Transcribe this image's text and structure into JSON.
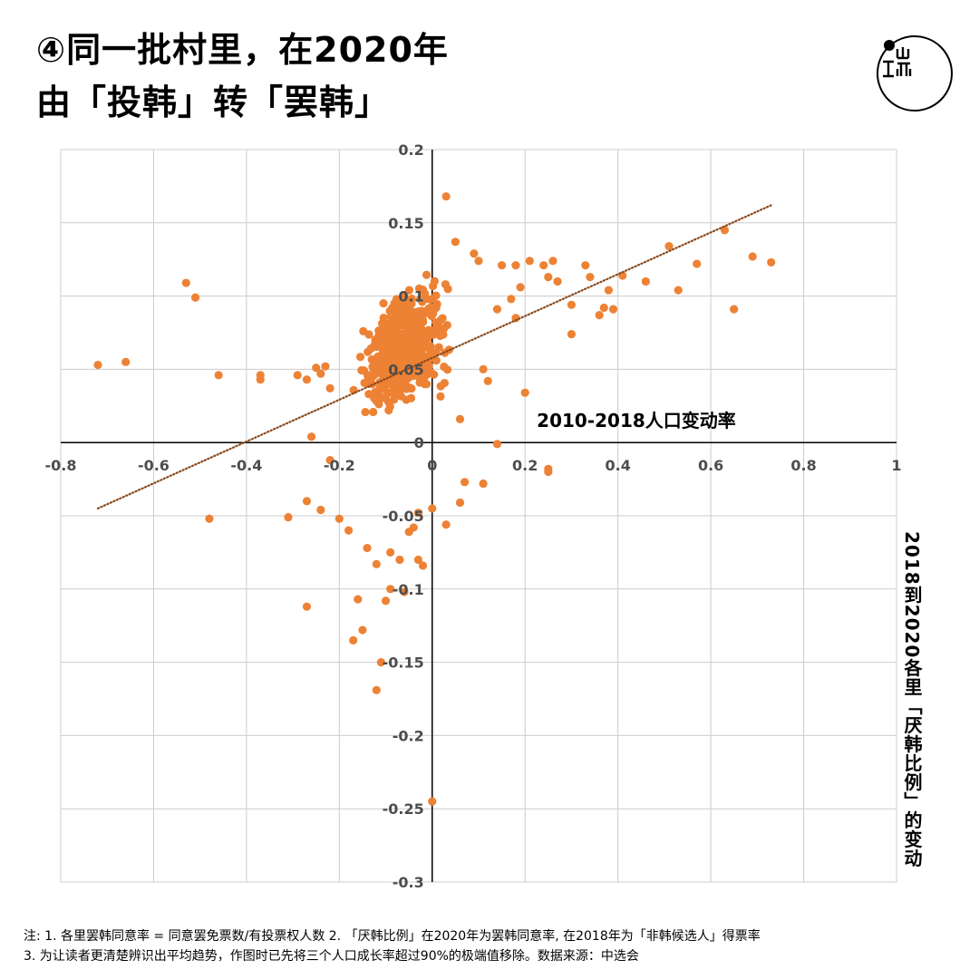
{
  "title": {
    "line1": "④同一批村里，在2020年",
    "line2": "由「投韩」转「罢韩」"
  },
  "logo": {
    "text": "端",
    "icon": "initium-logo-icon"
  },
  "notes": {
    "line1": "注: 1. 各里罢韩同意率 = 同意罢免票数/有投票权人数 2. 「厌韩比例」在2020年为罢韩同意率, 在2018年为「非韩候选人」得票率",
    "line2": "3. 为让读者更清楚辨识出平均趋势，作图时已先将三个人口成长率超过90%的极端值移除。数据来源：中选会"
  },
  "colors": {
    "point": "#ED8235",
    "trend": "#8B4A1E",
    "grid": "#cccccc",
    "axis": "#000000",
    "tick": "#4d4d4d"
  },
  "chart_data": {
    "type": "scatter",
    "title": "④同一批村里，在2020年由「投韩」转「罢韩」",
    "xlabel": "2010-2018人口变动率",
    "ylabel": "2018到2020各里「厌韩比例」的变动",
    "xlim": [
      -0.8,
      1
    ],
    "ylim": [
      -0.3,
      0.2
    ],
    "x_ticks": [
      "-0.8",
      "-0.6",
      "-0.4",
      "-0.2",
      "0",
      "0.2",
      "0.4",
      "0.6",
      "0.8",
      "1"
    ],
    "x_tick_values": [
      -0.8,
      -0.6,
      -0.4,
      -0.2,
      0,
      0.2,
      0.4,
      0.6,
      0.8,
      1
    ],
    "y_ticks": [
      "0.2",
      "0.15",
      "0.1",
      "0.05",
      "0",
      "-0.05",
      "-0.1",
      "-0.15",
      "-0.2",
      "-0.25",
      "-0.3"
    ],
    "y_tick_values": [
      0.2,
      0.15,
      0.1,
      0.05,
      0,
      -0.05,
      -0.1,
      -0.15,
      -0.2,
      -0.25,
      -0.3
    ],
    "grid": true,
    "trendline": {
      "x": [
        -0.72,
        0.73
      ],
      "y": [
        -0.045,
        0.162
      ],
      "style": "dotted"
    },
    "explicit_points": [
      [
        -0.72,
        0.053
      ],
      [
        -0.66,
        0.055
      ],
      [
        -0.53,
        0.109
      ],
      [
        -0.51,
        0.099
      ],
      [
        -0.46,
        0.046
      ],
      [
        -0.48,
        -0.052
      ],
      [
        -0.37,
        0.046
      ],
      [
        -0.37,
        0.043
      ],
      [
        -0.31,
        -0.051
      ],
      [
        -0.29,
        0.046
      ],
      [
        -0.27,
        0.043
      ],
      [
        -0.27,
        -0.112
      ],
      [
        -0.26,
        0.004
      ],
      [
        -0.27,
        -0.04
      ],
      [
        -0.25,
        0.051
      ],
      [
        -0.24,
        0.047
      ],
      [
        -0.23,
        0.052
      ],
      [
        -0.22,
        -0.012
      ],
      [
        -0.24,
        -0.046
      ],
      [
        -0.22,
        0.037
      ],
      [
        -0.2,
        -0.052
      ],
      [
        -0.18,
        -0.06
      ],
      [
        -0.17,
        -0.135
      ],
      [
        -0.16,
        -0.107
      ],
      [
        -0.15,
        -0.128
      ],
      [
        -0.14,
        -0.072
      ],
      [
        -0.12,
        -0.083
      ],
      [
        -0.12,
        -0.169
      ],
      [
        -0.11,
        -0.15
      ],
      [
        -0.1,
        -0.108
      ],
      [
        -0.09,
        -0.1
      ],
      [
        -0.09,
        -0.075
      ],
      [
        -0.07,
        -0.08
      ],
      [
        -0.06,
        -0.102
      ],
      [
        -0.05,
        -0.061
      ],
      [
        -0.04,
        -0.058
      ],
      [
        -0.03,
        -0.08
      ],
      [
        -0.02,
        -0.084
      ],
      [
        -0.03,
        -0.048
      ],
      [
        0.0,
        -0.245
      ],
      [
        0.0,
        -0.045
      ],
      [
        0.03,
        -0.056
      ],
      [
        0.03,
        0.168
      ],
      [
        0.05,
        0.137
      ],
      [
        0.06,
        0.016
      ],
      [
        0.06,
        -0.041
      ],
      [
        0.07,
        -0.027
      ],
      [
        0.09,
        0.129
      ],
      [
        0.1,
        0.124
      ],
      [
        0.11,
        -0.028
      ],
      [
        0.11,
        0.05
      ],
      [
        0.12,
        0.042
      ],
      [
        0.14,
        -0.001
      ],
      [
        0.14,
        0.091
      ],
      [
        0.15,
        0.121
      ],
      [
        0.17,
        0.098
      ],
      [
        0.18,
        0.121
      ],
      [
        0.18,
        0.085
      ],
      [
        0.19,
        0.106
      ],
      [
        0.2,
        0.034
      ],
      [
        0.21,
        0.124
      ],
      [
        0.24,
        0.121
      ],
      [
        0.25,
        -0.018
      ],
      [
        0.26,
        0.124
      ],
      [
        0.25,
        -0.02
      ],
      [
        0.25,
        0.113
      ],
      [
        0.27,
        0.11
      ],
      [
        0.3,
        0.094
      ],
      [
        0.3,
        0.074
      ],
      [
        0.33,
        0.121
      ],
      [
        0.34,
        0.113
      ],
      [
        0.36,
        0.087
      ],
      [
        0.37,
        0.092
      ],
      [
        0.38,
        0.104
      ],
      [
        0.39,
        0.091
      ],
      [
        0.41,
        0.114
      ],
      [
        0.46,
        0.11
      ],
      [
        0.51,
        0.134
      ],
      [
        0.53,
        0.104
      ],
      [
        0.57,
        0.122
      ],
      [
        0.63,
        0.145
      ],
      [
        0.65,
        0.091
      ],
      [
        0.69,
        0.127
      ],
      [
        0.73,
        0.123
      ]
    ],
    "cluster": {
      "description": "dense cloud of several hundred village points",
      "center": [
        -0.06,
        0.065
      ],
      "spread_x": [
        -0.22,
        0.12
      ],
      "spread_y": [
        -0.06,
        0.135
      ],
      "count": 620,
      "seed": 20201
    }
  }
}
